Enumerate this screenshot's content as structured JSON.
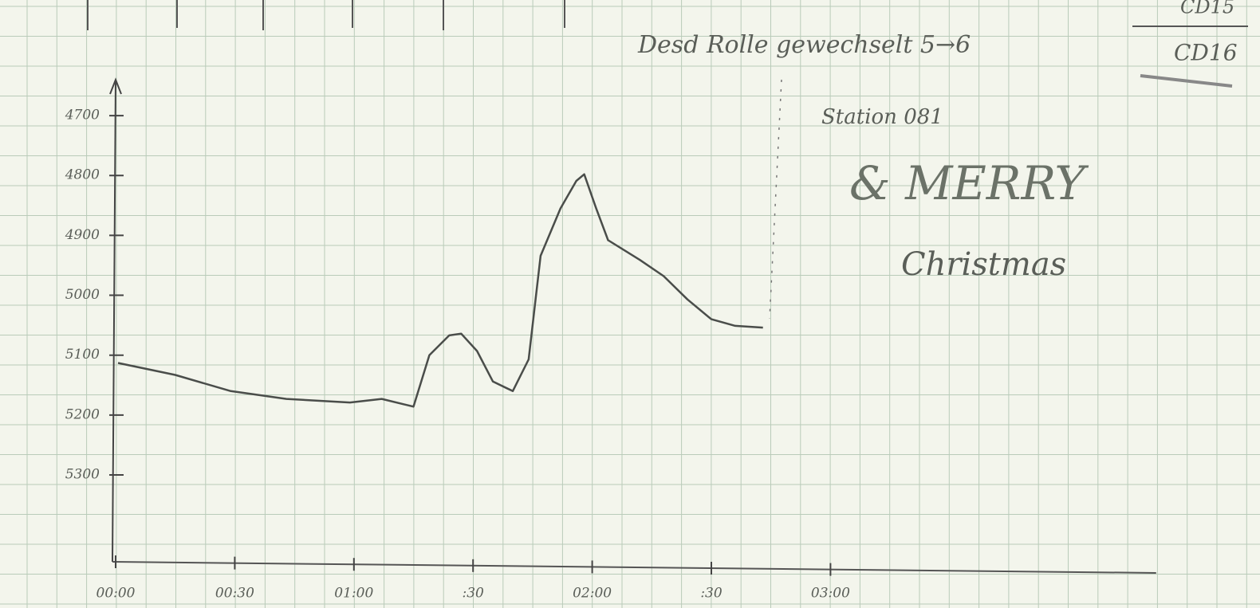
{
  "chart_data": {
    "type": "line",
    "x": [
      0.6,
      15,
      29,
      43,
      59,
      67,
      75,
      79,
      84,
      87,
      91,
      95,
      100,
      104,
      107,
      112,
      116,
      118,
      121,
      124,
      132,
      138,
      144,
      150,
      156,
      163
    ],
    "series": [
      {
        "color": "#4a4d4a",
        "values": [
          5113,
          5133,
          5160,
          5173,
          5179,
          5173,
          5186,
          5100,
          5067,
          5064,
          5093,
          5144,
          5160,
          5107,
          4934,
          4855,
          4809,
          4798,
          4855,
          4908,
          4941,
          4968,
          5007,
          5040,
          5051,
          5054
        ]
      }
    ],
    "xlim": [
      0,
      262
    ],
    "ylim": [
      5445,
      4640
    ],
    "xticks": [
      {
        "value": 0,
        "label": "00:00"
      },
      {
        "value": 30,
        "label": "00:30"
      },
      {
        "value": 60,
        "label": "01:00"
      },
      {
        "value": 90,
        "label": ":30"
      },
      {
        "value": 120,
        "label": "02:00"
      },
      {
        "value": 150,
        "label": ":30"
      },
      {
        "value": 180,
        "label": "03:00"
      }
    ],
    "yticks": [
      4700,
      4800,
      4900,
      5000,
      5100,
      5200,
      5300
    ],
    "annotations": [
      "Desd Rolle gewechselt 5→6",
      "Station 081",
      "& MERRY",
      "Christmas",
      "CD15",
      "CD16"
    ]
  }
}
